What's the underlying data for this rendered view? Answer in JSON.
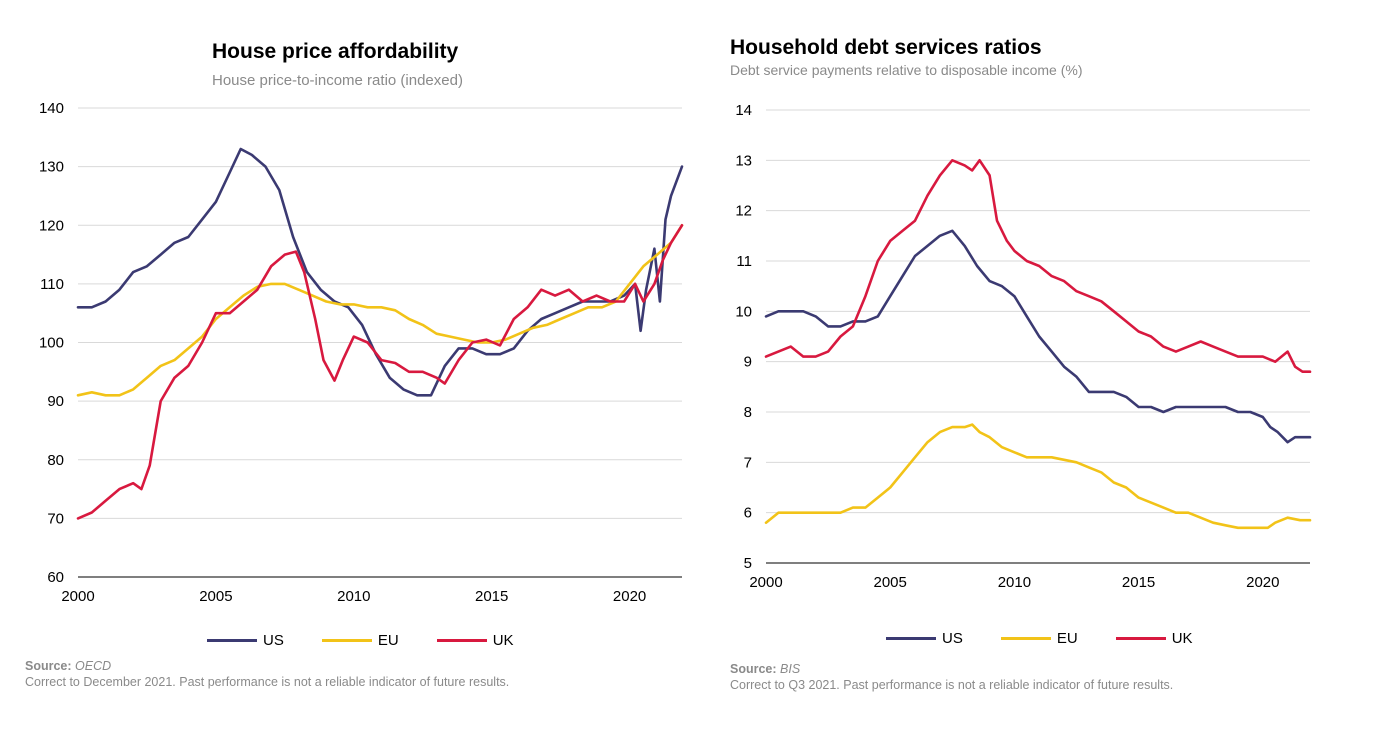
{
  "colors": {
    "US": "#3b3a72",
    "EU": "#f2c318",
    "UK": "#d8193f"
  },
  "left": {
    "title": "House  price  affordability",
    "subtitle": "House price-to-income ratio (indexed)",
    "source_label": "Source:",
    "source_name": "OECD",
    "note": "Correct to December 2021.  Past performance is not a reliable  indicator of future results."
  },
  "right": {
    "title": "Household  debt services  ratios",
    "subtitle": "Debt service payments relative to disposable income (%)",
    "source_label": "Source:",
    "source_name": "BIS",
    "note": "Correct to Q3 2021.  Past performance is not a reliable indicator of future results."
  },
  "chart_data": [
    {
      "type": "line",
      "title": "House  price  affordability",
      "subtitle": "House price-to-income ratio (indexed)",
      "xlabel": "",
      "ylabel": "",
      "xlim": [
        2000,
        2021.9
      ],
      "ylim": [
        60,
        140
      ],
      "x_ticks": [
        "2000",
        "2005",
        "2010",
        "2015",
        "2020"
      ],
      "y_ticks": [
        "60",
        "70",
        "80",
        "90",
        "100",
        "110",
        "120",
        "130",
        "140"
      ],
      "grid": true,
      "legend": "bottom",
      "series": [
        {
          "name": "US",
          "x": [
            2000,
            2000.5,
            2001,
            2001.5,
            2002,
            2002.5,
            2003,
            2003.5,
            2004,
            2004.5,
            2005,
            2005.5,
            2005.9,
            2006.3,
            2006.8,
            2007.3,
            2007.8,
            2008.3,
            2008.8,
            2009.3,
            2009.8,
            2010.3,
            2010.8,
            2011.3,
            2011.8,
            2012.3,
            2012.8,
            2013.3,
            2013.8,
            2014.3,
            2014.8,
            2015.3,
            2015.8,
            2016.3,
            2016.8,
            2017.3,
            2017.8,
            2018.3,
            2018.8,
            2019.3,
            2019.8,
            2020.2,
            2020.4,
            2020.6,
            2020.9,
            2021.1,
            2021.3,
            2021.5,
            2021.9
          ],
          "y": [
            106,
            106,
            107,
            109,
            112,
            113,
            115,
            117,
            118,
            121,
            124,
            129,
            133,
            132,
            130,
            126,
            118,
            112,
            109,
            107,
            106,
            103,
            98,
            94,
            92,
            91,
            91,
            96,
            99,
            99,
            98,
            98,
            99,
            102,
            104,
            105,
            106,
            107,
            107,
            107,
            108,
            110,
            102,
            109,
            116,
            107,
            121,
            125,
            130
          ]
        },
        {
          "name": "EU",
          "x": [
            2000,
            2000.5,
            2001,
            2001.5,
            2002,
            2002.5,
            2003,
            2003.5,
            2004,
            2004.5,
            2005,
            2005.5,
            2006,
            2006.5,
            2007,
            2007.5,
            2008,
            2008.5,
            2009,
            2009.5,
            2010,
            2010.5,
            2011,
            2011.5,
            2012,
            2012.5,
            2013,
            2013.5,
            2014,
            2014.5,
            2015,
            2015.5,
            2016,
            2016.5,
            2017,
            2017.5,
            2018,
            2018.5,
            2019,
            2019.5,
            2020,
            2020.5,
            2021,
            2021.5,
            2021.9
          ],
          "y": [
            91,
            91.5,
            91,
            91,
            92,
            94,
            96,
            97,
            99,
            101,
            104,
            106,
            108,
            109.5,
            110,
            110,
            109,
            108,
            107,
            106.5,
            106.5,
            106,
            106,
            105.5,
            104,
            103,
            101.5,
            101,
            100.5,
            100,
            100,
            100.5,
            101.5,
            102.5,
            103,
            104,
            105,
            106,
            106,
            107,
            110,
            113,
            115,
            117,
            120
          ]
        },
        {
          "name": "UK",
          "x": [
            2000,
            2000.5,
            2001,
            2001.5,
            2002,
            2002.3,
            2002.6,
            2003,
            2003.5,
            2004,
            2004.5,
            2005,
            2005.5,
            2006,
            2006.5,
            2007,
            2007.5,
            2007.9,
            2008.2,
            2008.6,
            2008.9,
            2009.3,
            2009.6,
            2010,
            2010.5,
            2011,
            2011.5,
            2012,
            2012.5,
            2013,
            2013.3,
            2013.8,
            2014.3,
            2014.8,
            2015.3,
            2015.8,
            2016.3,
            2016.8,
            2017.3,
            2017.8,
            2018.3,
            2018.8,
            2019.3,
            2019.8,
            2020.2,
            2020.5,
            2020.9,
            2021.2,
            2021.5,
            2021.9
          ],
          "y": [
            70,
            71,
            73,
            75,
            76,
            75,
            79,
            90,
            94,
            96,
            100,
            105,
            105,
            107,
            109,
            113,
            115,
            115.5,
            112,
            104,
            97,
            93.5,
            97,
            101,
            100,
            97,
            96.5,
            95,
            95,
            94,
            93,
            97,
            100,
            100.5,
            99.5,
            104,
            106,
            109,
            108,
            109,
            107,
            108,
            107,
            107,
            110,
            107,
            110,
            114,
            117,
            120
          ]
        }
      ]
    },
    {
      "type": "line",
      "title": "Household  debt services  ratios",
      "subtitle": "Debt service payments relative to disposable income (%)",
      "xlabel": "",
      "ylabel": "",
      "xlim": [
        2000,
        2021.9
      ],
      "ylim": [
        5,
        14
      ],
      "x_ticks": [
        "2000",
        "2005",
        "2010",
        "2015",
        "2020"
      ],
      "y_ticks": [
        "5",
        "6",
        "7",
        "8",
        "9",
        "10",
        "11",
        "12",
        "13",
        "14"
      ],
      "grid": true,
      "legend": "bottom",
      "series": [
        {
          "name": "US",
          "x": [
            2000,
            2000.5,
            2001,
            2001.5,
            2002,
            2002.5,
            2003,
            2003.5,
            2004,
            2004.5,
            2005,
            2005.5,
            2006,
            2006.5,
            2007,
            2007.5,
            2008,
            2008.5,
            2009,
            2009.5,
            2010,
            2010.5,
            2011,
            2011.5,
            2012,
            2012.5,
            2013,
            2013.5,
            2014,
            2014.5,
            2015,
            2015.5,
            2016,
            2016.5,
            2017,
            2017.5,
            2018,
            2018.5,
            2019,
            2019.5,
            2020,
            2020.3,
            2020.6,
            2021,
            2021.3,
            2021.9
          ],
          "y": [
            9.9,
            10,
            10,
            10,
            9.9,
            9.7,
            9.7,
            9.8,
            9.8,
            9.9,
            10.3,
            10.7,
            11.1,
            11.3,
            11.5,
            11.6,
            11.3,
            10.9,
            10.6,
            10.5,
            10.3,
            9.9,
            9.5,
            9.2,
            8.9,
            8.7,
            8.4,
            8.4,
            8.4,
            8.3,
            8.1,
            8.1,
            8.0,
            8.1,
            8.1,
            8.1,
            8.1,
            8.1,
            8.0,
            8.0,
            7.9,
            7.7,
            7.6,
            7.4,
            7.5,
            7.5
          ]
        },
        {
          "name": "EU",
          "x": [
            2000,
            2000.5,
            2001,
            2001.5,
            2002,
            2002.5,
            2003,
            2003.5,
            2004,
            2004.5,
            2005,
            2005.5,
            2006,
            2006.5,
            2007,
            2007.5,
            2008,
            2008.3,
            2008.6,
            2009,
            2009.5,
            2010,
            2010.5,
            2011,
            2011.5,
            2012,
            2012.5,
            2013,
            2013.5,
            2014,
            2014.5,
            2015,
            2015.5,
            2016,
            2016.5,
            2017,
            2017.5,
            2018,
            2018.5,
            2019,
            2019.5,
            2019.8,
            2020.2,
            2020.5,
            2021,
            2021.5,
            2021.9
          ],
          "y": [
            5.8,
            6.0,
            6.0,
            6.0,
            6.0,
            6.0,
            6.0,
            6.1,
            6.1,
            6.3,
            6.5,
            6.8,
            7.1,
            7.4,
            7.6,
            7.7,
            7.7,
            7.75,
            7.6,
            7.5,
            7.3,
            7.2,
            7.1,
            7.1,
            7.1,
            7.05,
            7.0,
            6.9,
            6.8,
            6.6,
            6.5,
            6.3,
            6.2,
            6.1,
            6.0,
            6.0,
            5.9,
            5.8,
            5.75,
            5.7,
            5.7,
            5.7,
            5.7,
            5.8,
            5.9,
            5.85,
            5.85
          ]
        },
        {
          "name": "UK",
          "x": [
            2000,
            2000.5,
            2001,
            2001.5,
            2002,
            2002.5,
            2003,
            2003.5,
            2004,
            2004.5,
            2005,
            2005.5,
            2006,
            2006.5,
            2007,
            2007.5,
            2008,
            2008.3,
            2008.6,
            2009,
            2009.3,
            2009.7,
            2010,
            2010.5,
            2011,
            2011.5,
            2012,
            2012.5,
            2013,
            2013.5,
            2014,
            2014.5,
            2015,
            2015.5,
            2016,
            2016.5,
            2017,
            2017.5,
            2018,
            2018.5,
            2019,
            2019.5,
            2020,
            2020.5,
            2021,
            2021.3,
            2021.6,
            2021.9
          ],
          "y": [
            9.1,
            9.2,
            9.3,
            9.1,
            9.1,
            9.2,
            9.5,
            9.7,
            10.3,
            11.0,
            11.4,
            11.6,
            11.8,
            12.3,
            12.7,
            13.0,
            12.9,
            12.8,
            13.0,
            12.7,
            11.8,
            11.4,
            11.2,
            11.0,
            10.9,
            10.7,
            10.6,
            10.4,
            10.3,
            10.2,
            10.0,
            9.8,
            9.6,
            9.5,
            9.3,
            9.2,
            9.3,
            9.4,
            9.3,
            9.2,
            9.1,
            9.1,
            9.1,
            9.0,
            9.2,
            8.9,
            8.8,
            8.8
          ]
        }
      ]
    }
  ]
}
